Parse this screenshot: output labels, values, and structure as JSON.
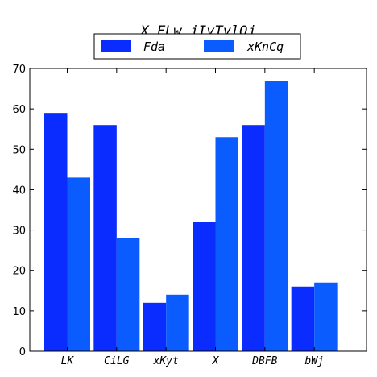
{
  "chart_data": {
    "type": "bar",
    "title": "X FLw jIyTylQj",
    "categories": [
      "LK",
      "CiLG",
      "xKyt",
      "X",
      "DBFB",
      "bWj"
    ],
    "series": [
      {
        "name": "Fda",
        "values": [
          59,
          56,
          12,
          32,
          56,
          16
        ],
        "color": "#0a2cff"
      },
      {
        "name": "xKnCq",
        "values": [
          43,
          28,
          14,
          53,
          67,
          17
        ],
        "color": "#0a5cff"
      }
    ],
    "ylim": [
      0,
      70
    ],
    "yticks": [
      0,
      10,
      20,
      30,
      40,
      50,
      60,
      70
    ],
    "grid": false,
    "legend": "top-center"
  }
}
